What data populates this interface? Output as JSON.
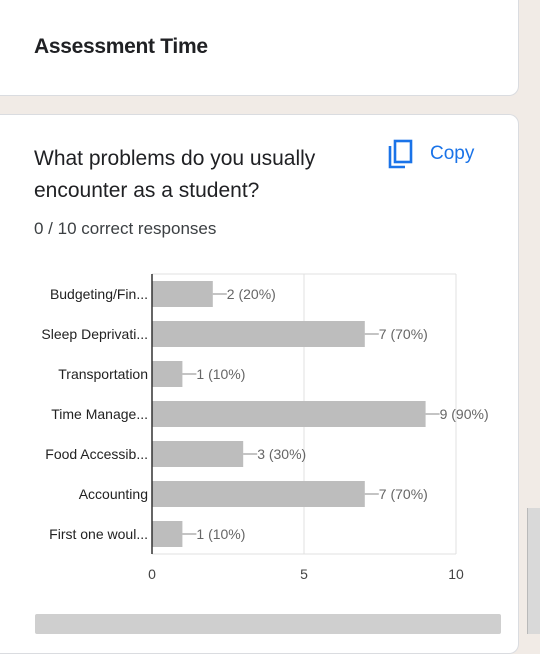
{
  "section": {
    "title": "Assessment Time"
  },
  "question": {
    "text": "What problems do you usually encounter as a student?",
    "copy_label": "Copy",
    "responses": "0 / 10 correct responses"
  },
  "chart_data": {
    "type": "bar",
    "orientation": "horizontal",
    "categories": [
      "Budgeting/Fin...",
      "Sleep Deprivati...",
      "Transportation",
      "Time Manage...",
      "Food Accessib...",
      "Accounting",
      "First one woul..."
    ],
    "values": [
      2,
      7,
      1,
      9,
      3,
      7,
      1
    ],
    "data_labels": [
      "2 (20%)",
      "7 (70%)",
      "1 (10%)",
      "9 (90%)",
      "3 (30%)",
      "7 (70%)",
      "1 (10%)"
    ],
    "xlim": [
      0,
      10
    ],
    "xticks": [
      0,
      5,
      10
    ],
    "grid": true,
    "bar_color": "#bdbdbd"
  }
}
